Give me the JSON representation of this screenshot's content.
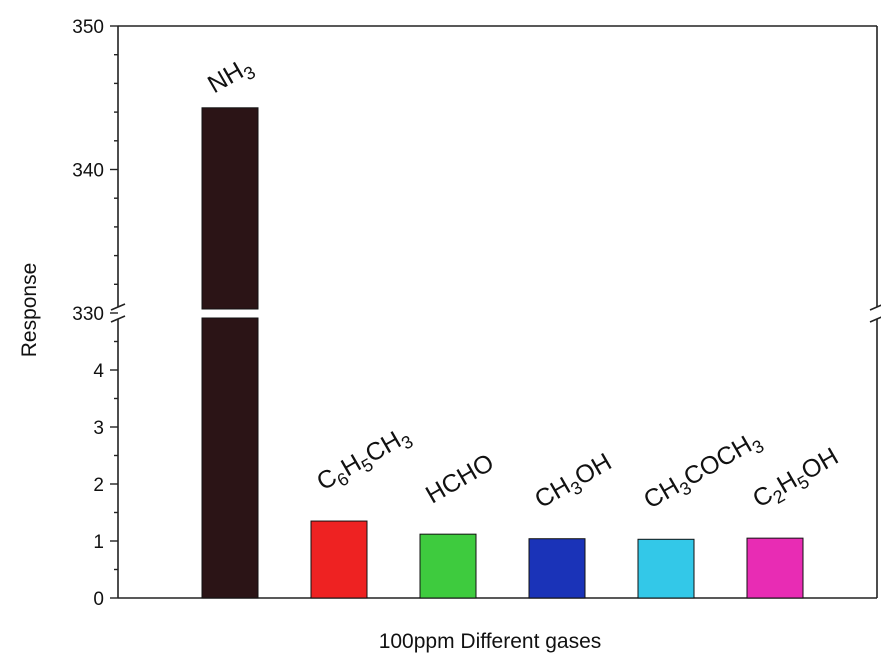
{
  "chart_data": {
    "type": "bar",
    "title": "",
    "xlabel": "100ppm Different gases",
    "ylabel": "Response",
    "axis_break": {
      "lower_range": [
        0,
        5
      ],
      "upper_range": [
        330,
        350
      ]
    },
    "yticks_lower": [
      0,
      1,
      2,
      3,
      4
    ],
    "yticks_upper": [
      330,
      340,
      350
    ],
    "categories": [
      {
        "label": "NH3",
        "parts": [
          [
            "NH",
            false
          ],
          [
            "3",
            true
          ]
        ],
        "value": 344.3,
        "color": "#2b1416"
      },
      {
        "label": "C6H5CH3",
        "parts": [
          [
            "C",
            false
          ],
          [
            "6",
            true
          ],
          [
            "H",
            false
          ],
          [
            "5",
            true
          ],
          [
            "CH",
            false
          ],
          [
            "3",
            true
          ]
        ],
        "value": 1.35,
        "color": "#ee2222"
      },
      {
        "label": "HCHO",
        "parts": [
          [
            "HCHO",
            false
          ]
        ],
        "value": 1.12,
        "color": "#3ecb3e"
      },
      {
        "label": "CH3OH",
        "parts": [
          [
            "CH",
            false
          ],
          [
            "3",
            true
          ],
          [
            "OH",
            false
          ]
        ],
        "value": 1.04,
        "color": "#1a33b8"
      },
      {
        "label": "CH3COCH3",
        "parts": [
          [
            "CH",
            false
          ],
          [
            "3",
            true
          ],
          [
            "COCH",
            false
          ],
          [
            "3",
            true
          ]
        ],
        "value": 1.03,
        "color": "#33c8e8"
      },
      {
        "label": "C2H5OH",
        "parts": [
          [
            "C",
            false
          ],
          [
            "2",
            true
          ],
          [
            "H",
            false
          ],
          [
            "5",
            true
          ],
          [
            "OH",
            false
          ]
        ],
        "value": 1.05,
        "color": "#e82cb4"
      }
    ],
    "grid": false,
    "legend": "none"
  }
}
